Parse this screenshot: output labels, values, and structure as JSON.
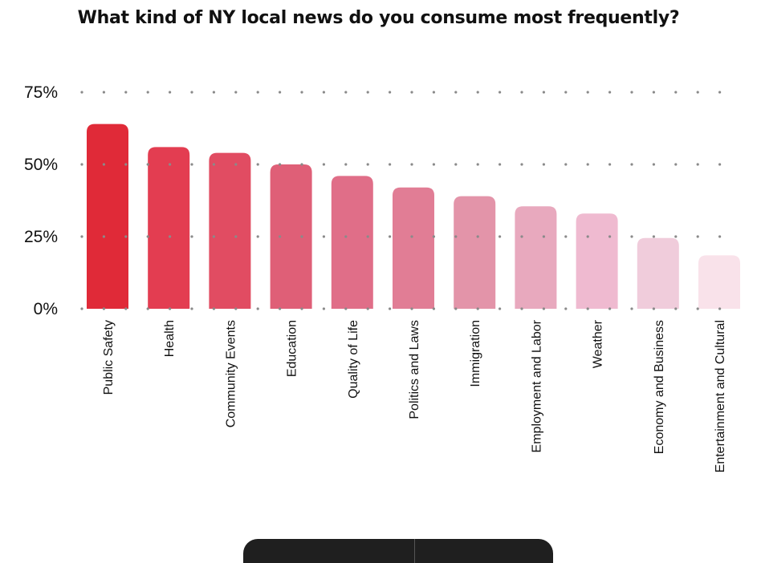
{
  "chart_data": {
    "type": "bar",
    "title": "What kind of NY local news do you consume most frequently?",
    "xlabel": "",
    "ylabel": "",
    "categories": [
      "Public Safety",
      "Health",
      "Community Events",
      "Education",
      "Quality of Life",
      "Politics and Laws",
      "Immigration",
      "Employment and Labor",
      "Weather",
      "Economy and Business",
      "Entertainment and Cultural"
    ],
    "values": [
      64,
      56,
      54,
      50,
      46,
      42,
      39,
      35.5,
      33,
      24.5,
      18.5
    ],
    "ylim": [
      0,
      75
    ],
    "yticks": [
      0,
      25,
      50,
      75
    ],
    "ytick_labels": [
      "0%",
      "25%",
      "50%",
      "75%"
    ],
    "grid": "dotted horizontal",
    "colors": [
      "#e02a38",
      "#e33d51",
      "#e14c62",
      "#df5f77",
      "#e06e88",
      "#e17d95",
      "#e394a9",
      "#e8a9be",
      "#efbad0",
      "#f0ccdb",
      "#f9e2ea"
    ]
  }
}
